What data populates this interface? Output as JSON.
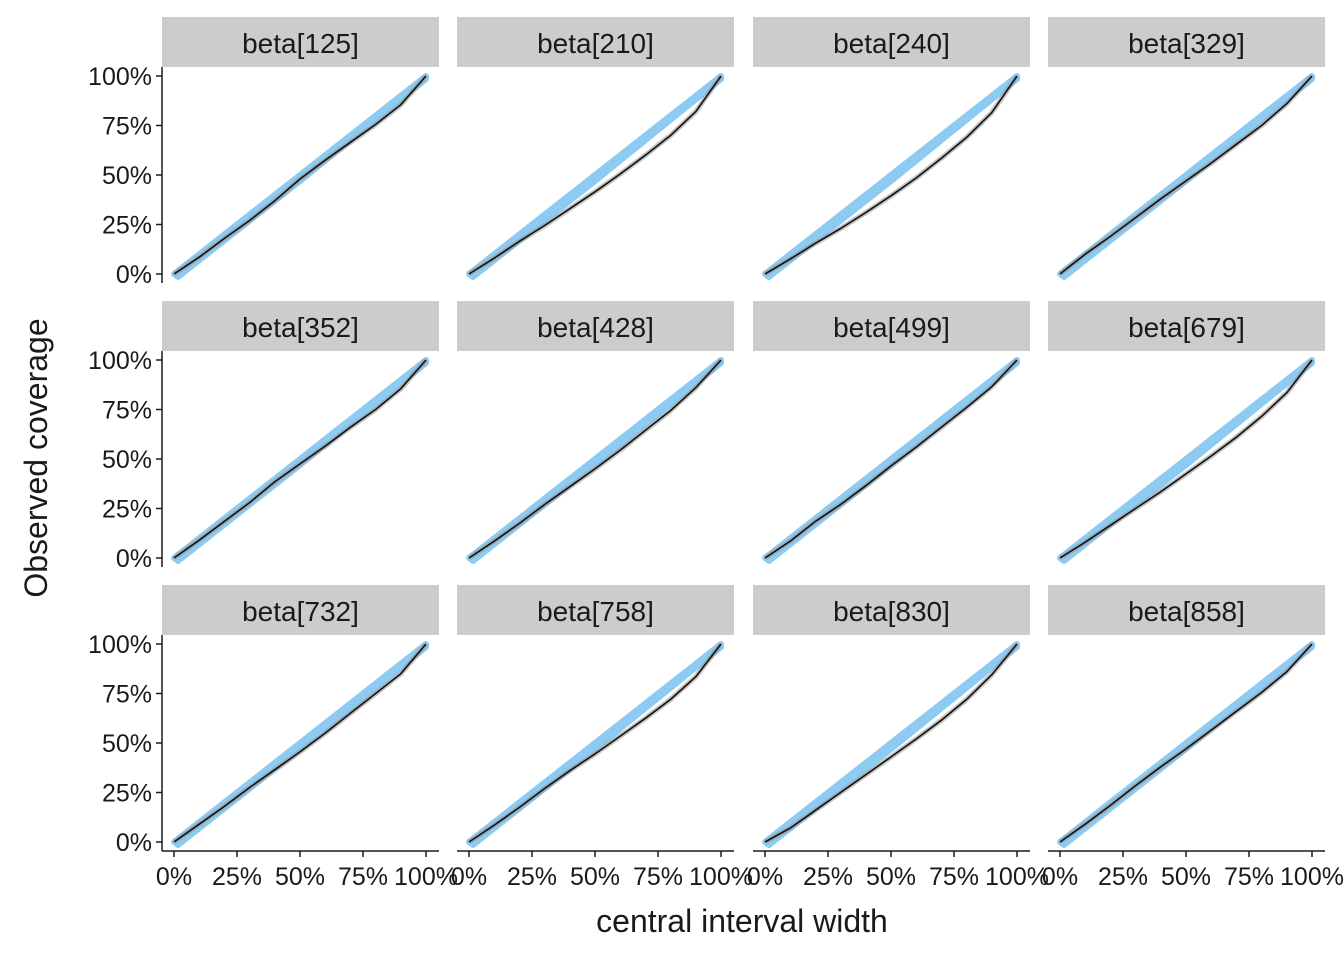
{
  "chart_data": {
    "type": "line",
    "layout": "facet-grid",
    "xlabel": "central interval width",
    "ylabel": "Observed coverage",
    "xlim": [
      0,
      1
    ],
    "ylim": [
      0,
      1
    ],
    "x_ticks": [
      "0%",
      "25%",
      "50%",
      "75%",
      "100%"
    ],
    "y_ticks": [
      "0%",
      "25%",
      "50%",
      "75%",
      "100%"
    ],
    "colors": {
      "band": "#8ecbf3",
      "observed_line": "#111111",
      "uncertainty_band": "#9a9a9a",
      "strip_background": "#cccccc"
    },
    "panels": [
      {
        "label": "beta[125]",
        "x": [
          0,
          0.1,
          0.2,
          0.3,
          0.4,
          0.5,
          0.6,
          0.7,
          0.8,
          0.9,
          1
        ],
        "y": [
          0,
          0.085,
          0.18,
          0.27,
          0.37,
          0.48,
          0.575,
          0.665,
          0.755,
          0.855,
          1
        ]
      },
      {
        "label": "beta[210]",
        "x": [
          0,
          0.1,
          0.2,
          0.3,
          0.4,
          0.5,
          0.6,
          0.7,
          0.8,
          0.9,
          1
        ],
        "y": [
          0,
          0.08,
          0.165,
          0.245,
          0.33,
          0.415,
          0.505,
          0.6,
          0.7,
          0.82,
          1
        ]
      },
      {
        "label": "beta[240]",
        "x": [
          0,
          0.1,
          0.2,
          0.3,
          0.4,
          0.5,
          0.6,
          0.7,
          0.8,
          0.9,
          1
        ],
        "y": [
          0,
          0.075,
          0.155,
          0.23,
          0.31,
          0.395,
          0.485,
          0.585,
          0.69,
          0.815,
          1
        ]
      },
      {
        "label": "beta[329]",
        "x": [
          0,
          0.1,
          0.2,
          0.3,
          0.4,
          0.5,
          0.6,
          0.7,
          0.8,
          0.9,
          1
        ],
        "y": [
          0,
          0.1,
          0.19,
          0.285,
          0.38,
          0.47,
          0.56,
          0.655,
          0.75,
          0.86,
          1
        ]
      },
      {
        "label": "beta[352]",
        "x": [
          0,
          0.1,
          0.2,
          0.3,
          0.4,
          0.5,
          0.6,
          0.7,
          0.8,
          0.9,
          1
        ],
        "y": [
          0,
          0.09,
          0.185,
          0.28,
          0.385,
          0.475,
          0.565,
          0.66,
          0.75,
          0.855,
          1
        ]
      },
      {
        "label": "beta[428]",
        "x": [
          0,
          0.1,
          0.2,
          0.3,
          0.4,
          0.5,
          0.6,
          0.7,
          0.8,
          0.9,
          1
        ],
        "y": [
          0,
          0.085,
          0.175,
          0.27,
          0.36,
          0.45,
          0.545,
          0.645,
          0.745,
          0.86,
          1
        ]
      },
      {
        "label": "beta[499]",
        "x": [
          0,
          0.1,
          0.2,
          0.3,
          0.4,
          0.5,
          0.6,
          0.7,
          0.8,
          0.9,
          1
        ],
        "y": [
          0,
          0.085,
          0.185,
          0.27,
          0.365,
          0.465,
          0.56,
          0.66,
          0.76,
          0.865,
          1
        ]
      },
      {
        "label": "beta[679]",
        "x": [
          0,
          0.1,
          0.2,
          0.3,
          0.4,
          0.5,
          0.6,
          0.7,
          0.8,
          0.9,
          1
        ],
        "y": [
          0,
          0.08,
          0.165,
          0.25,
          0.335,
          0.425,
          0.515,
          0.61,
          0.715,
          0.835,
          1
        ]
      },
      {
        "label": "beta[732]",
        "x": [
          0,
          0.1,
          0.2,
          0.3,
          0.4,
          0.5,
          0.6,
          0.7,
          0.8,
          0.9,
          1
        ],
        "y": [
          0,
          0.09,
          0.18,
          0.275,
          0.365,
          0.455,
          0.55,
          0.65,
          0.75,
          0.85,
          1
        ]
      },
      {
        "label": "beta[758]",
        "x": [
          0,
          0.1,
          0.2,
          0.3,
          0.4,
          0.5,
          0.6,
          0.7,
          0.8,
          0.9,
          1
        ],
        "y": [
          0,
          0.085,
          0.175,
          0.27,
          0.36,
          0.445,
          0.535,
          0.625,
          0.72,
          0.835,
          1
        ]
      },
      {
        "label": "beta[830]",
        "x": [
          0,
          0.1,
          0.2,
          0.3,
          0.4,
          0.5,
          0.6,
          0.7,
          0.8,
          0.9,
          1
        ],
        "y": [
          0,
          0.07,
          0.16,
          0.25,
          0.34,
          0.43,
          0.52,
          0.615,
          0.72,
          0.845,
          1
        ]
      },
      {
        "label": "beta[858]",
        "x": [
          0,
          0.1,
          0.2,
          0.3,
          0.4,
          0.5,
          0.6,
          0.7,
          0.8,
          0.9,
          1
        ],
        "y": [
          0,
          0.09,
          0.185,
          0.285,
          0.38,
          0.47,
          0.565,
          0.66,
          0.755,
          0.86,
          1
        ]
      }
    ]
  }
}
